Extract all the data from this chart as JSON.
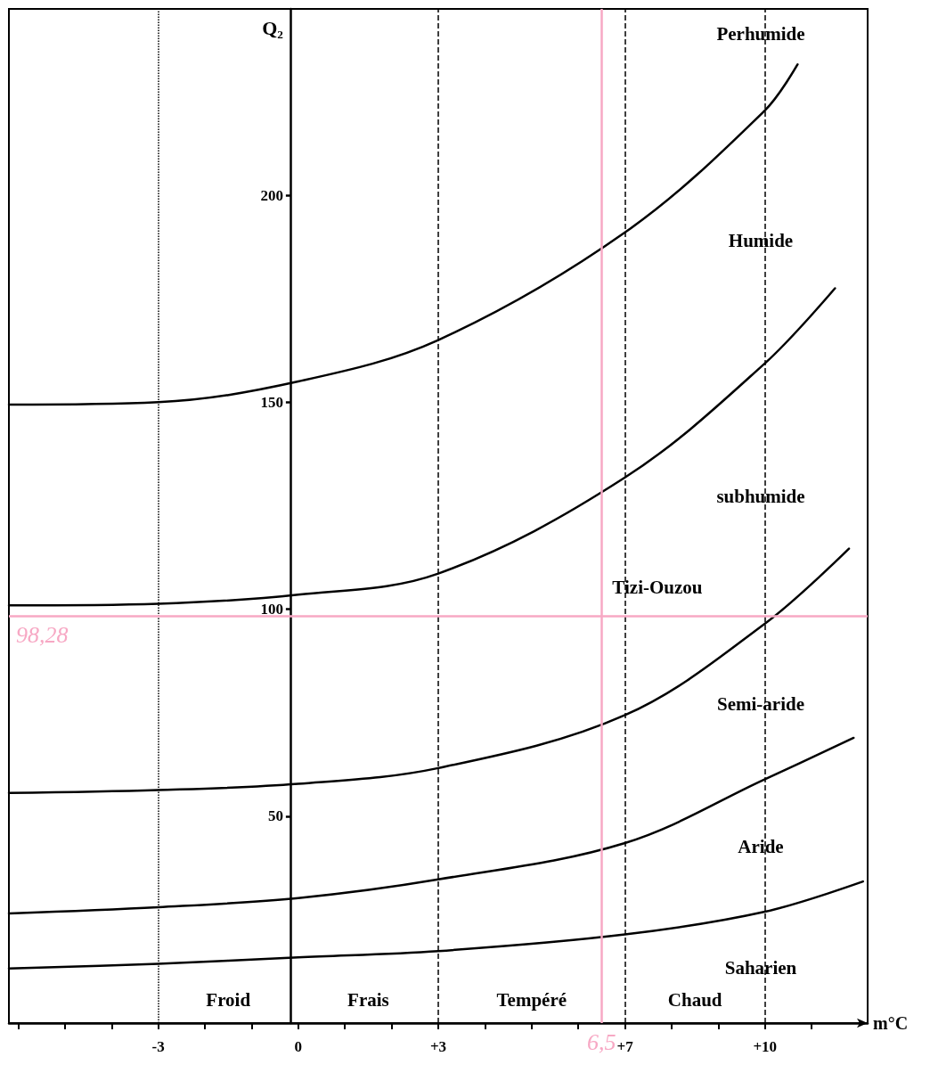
{
  "chart_data": {
    "type": "line",
    "xlabel": "m°C",
    "ylabel": "Q₂",
    "xlim": [
      -6.2,
      12.2
    ],
    "ylim": [
      0,
      245
    ],
    "xticks": [
      {
        "value": -6,
        "label": null
      },
      {
        "value": -5,
        "label": null
      },
      {
        "value": -4,
        "label": null
      },
      {
        "value": -3,
        "label": "-3"
      },
      {
        "value": -2,
        "label": null
      },
      {
        "value": -1,
        "label": null
      },
      {
        "value": 0,
        "label": "0"
      },
      {
        "value": 1,
        "label": null
      },
      {
        "value": 2,
        "label": null
      },
      {
        "value": 3,
        "label": "+3"
      },
      {
        "value": 4,
        "label": null
      },
      {
        "value": 5,
        "label": null
      },
      {
        "value": 6,
        "label": null
      },
      {
        "value": 7,
        "label": "+7"
      },
      {
        "value": 8,
        "label": null
      },
      {
        "value": 9,
        "label": null
      },
      {
        "value": 10,
        "label": "+10"
      },
      {
        "value": 11,
        "label": null
      }
    ],
    "yticks": [
      50,
      100,
      150,
      200
    ],
    "series": [
      {
        "color": "#000000",
        "x": [
          -6.2,
          -3,
          0,
          3,
          7,
          10,
          10.7
        ],
        "values": [
          149.4,
          150,
          155,
          165,
          191,
          220.5,
          231.6
        ]
      },
      {
        "color": "#000000",
        "x": [
          -6.2,
          -3,
          0,
          3,
          7,
          10,
          11.5
        ],
        "values": [
          100.9,
          101.3,
          103.5,
          108.6,
          131.8,
          159.4,
          177.5
        ]
      },
      {
        "color": "#000000",
        "x": [
          -6.2,
          -3,
          0,
          3,
          7,
          10,
          11.8
        ],
        "values": [
          55.6,
          56.3,
          57.8,
          61.6,
          74.4,
          96.5,
          114.6
        ]
      },
      {
        "color": "#000000",
        "x": [
          -6.2,
          -3,
          0,
          3,
          7,
          10,
          11.9
        ],
        "values": [
          26.5,
          28,
          30.2,
          34.7,
          43.5,
          58.9,
          68.9
        ]
      },
      {
        "color": "#000000",
        "x": [
          -6.2,
          -3,
          0,
          3,
          7,
          10,
          12.1
        ],
        "values": [
          13.2,
          14.3,
          15.9,
          17.4,
          21.4,
          26.9,
          34.2
        ]
      }
    ],
    "ref_lines": [
      {
        "axis": "x",
        "value": -3,
        "color": "#000000",
        "line_style": "dotted"
      },
      {
        "axis": "x",
        "value": 3,
        "color": "#000000",
        "line_style": "dashed"
      },
      {
        "axis": "x",
        "value": 7,
        "color": "#000000",
        "line_style": "dashed"
      },
      {
        "axis": "x",
        "value": 10,
        "color": "#000000",
        "line_style": "dashed"
      },
      {
        "axis": "x",
        "value": 6.5,
        "label": "6,5",
        "color": "#f7a8c4",
        "line_style": "solid"
      },
      {
        "axis": "y",
        "value": 98.28,
        "label": "98,28",
        "color": "#f7a8c4",
        "line_style": "solid"
      }
    ],
    "annotations": [
      "Perhumide",
      "Humide",
      "subhumide",
      "Semi-aride",
      "Aride",
      "Saharien",
      "Froid",
      "Frais",
      "Tempéré",
      "Chaud",
      "Tizi-Ouzou"
    ],
    "grid": false,
    "marker": "none",
    "line_style": "solid"
  }
}
